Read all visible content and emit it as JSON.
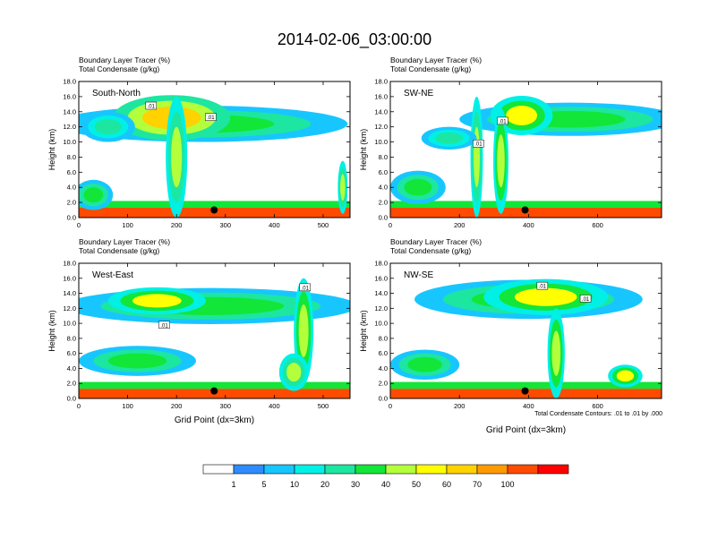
{
  "title": "2014-02-06_03:00:00",
  "chart_data": [
    {
      "type": "heatmap",
      "subtitle_lines": [
        "Boundary Layer Tracer   (%)",
        "Total Condensate   (g/kg)"
      ],
      "label": "South-North",
      "ylabel": "Height (km)",
      "xlabel": "",
      "xlim": [
        0,
        555
      ],
      "ylim": [
        0,
        18
      ],
      "xticks": [
        0,
        100,
        200,
        300,
        400,
        500
      ],
      "yticks": [
        "0.0",
        "2.0",
        "4.0",
        "6.0",
        "8.0",
        "10.0",
        "12.0",
        "14.0",
        "16.0",
        "18.0"
      ],
      "contour_labels": [
        {
          "x": 148,
          "y": 14.8,
          "text": ".01"
        },
        {
          "x": 270,
          "y": 13.3,
          "text": ".01"
        }
      ],
      "marker": {
        "x": 277,
        "y": 1.0
      },
      "features": [
        {
          "kind": "layer",
          "x0": 0,
          "x1": 555,
          "y0": 0,
          "y1": 1.3,
          "v": 75
        },
        {
          "kind": "layer",
          "x0": 0,
          "x1": 555,
          "y0": 1.3,
          "y1": 2.2,
          "v": 28
        },
        {
          "kind": "blob",
          "x": 250,
          "y": 12.4,
          "rx": 300,
          "ry": 2.4,
          "v": 20
        },
        {
          "kind": "blob",
          "x": 190,
          "y": 13.2,
          "rx": 120,
          "ry": 3.0,
          "v": 50
        },
        {
          "kind": "blob",
          "x": 200,
          "y": 8.0,
          "rx": 22,
          "ry": 8.0,
          "v": 30
        },
        {
          "kind": "blob",
          "x": 60,
          "y": 12.0,
          "rx": 55,
          "ry": 2.0,
          "v": 10
        },
        {
          "kind": "blob",
          "x": 540,
          "y": 4.0,
          "rx": 10,
          "ry": 3.5,
          "v": 30
        },
        {
          "kind": "blob",
          "x": 30,
          "y": 3.0,
          "rx": 40,
          "ry": 2.0,
          "v": 20
        }
      ]
    },
    {
      "type": "heatmap",
      "subtitle_lines": [
        "Boundary Layer Tracer   (%)",
        "Total Condensate   (g/kg)"
      ],
      "label": "SW-NE",
      "ylabel": "Height (km)",
      "xlabel": "",
      "xlim": [
        0,
        785
      ],
      "ylim": [
        0,
        18
      ],
      "xticks": [
        0,
        200,
        400,
        600
      ],
      "yticks": [
        "0.0",
        "2.0",
        "4.0",
        "6.0",
        "8.0",
        "10.0",
        "12.0",
        "14.0",
        "16.0",
        "18.0"
      ],
      "contour_labels": [
        {
          "x": 255,
          "y": 9.8,
          "text": ".01"
        },
        {
          "x": 325,
          "y": 12.8,
          "text": ".01"
        }
      ],
      "marker": {
        "x": 390,
        "y": 1.0
      },
      "features": [
        {
          "kind": "layer",
          "x0": 0,
          "x1": 785,
          "y0": 0,
          "y1": 1.3,
          "v": 75
        },
        {
          "kind": "layer",
          "x0": 0,
          "x1": 785,
          "y0": 1.3,
          "y1": 2.2,
          "v": 28
        },
        {
          "kind": "blob",
          "x": 520,
          "y": 13.0,
          "rx": 320,
          "ry": 2.2,
          "v": 20
        },
        {
          "kind": "blob",
          "x": 380,
          "y": 13.5,
          "rx": 90,
          "ry": 2.6,
          "v": 45
        },
        {
          "kind": "blob",
          "x": 250,
          "y": 8.0,
          "rx": 18,
          "ry": 8.0,
          "v": 30
        },
        {
          "kind": "blob",
          "x": 320,
          "y": 7.5,
          "rx": 22,
          "ry": 7.0,
          "v": 35
        },
        {
          "kind": "blob",
          "x": 80,
          "y": 4.0,
          "rx": 80,
          "ry": 2.2,
          "v": 20
        },
        {
          "kind": "blob",
          "x": 170,
          "y": 10.5,
          "rx": 80,
          "ry": 1.5,
          "v": 10
        }
      ]
    },
    {
      "type": "heatmap",
      "subtitle_lines": [
        "Boundary Layer Tracer   (%)",
        "Total Condensate   (g/kg)"
      ],
      "label": "West-East",
      "ylabel": "Height (km)",
      "xlabel": "Grid Point (dx=3km)",
      "xlim": [
        0,
        555
      ],
      "ylim": [
        0,
        18
      ],
      "xticks": [
        0,
        100,
        200,
        300,
        400,
        500
      ],
      "yticks": [
        "0.0",
        "2.0",
        "4.0",
        "6.0",
        "8.0",
        "10.0",
        "12.0",
        "14.0",
        "16.0",
        "18.0"
      ],
      "contour_labels": [
        {
          "x": 175,
          "y": 9.8,
          "text": ".01"
        },
        {
          "x": 463,
          "y": 14.8,
          "text": ".01"
        }
      ],
      "marker": {
        "x": 277,
        "y": 1.0
      },
      "features": [
        {
          "kind": "layer",
          "x0": 0,
          "x1": 555,
          "y0": 0,
          "y1": 1.3,
          "v": 75
        },
        {
          "kind": "layer",
          "x0": 0,
          "x1": 555,
          "y0": 1.3,
          "y1": 2.2,
          "v": 28
        },
        {
          "kind": "blob",
          "x": 270,
          "y": 12.3,
          "rx": 300,
          "ry": 2.4,
          "v": 22
        },
        {
          "kind": "blob",
          "x": 160,
          "y": 13.0,
          "rx": 100,
          "ry": 1.8,
          "v": 45
        },
        {
          "kind": "blob",
          "x": 460,
          "y": 9.0,
          "rx": 20,
          "ry": 7.0,
          "v": 35
        },
        {
          "kind": "blob",
          "x": 120,
          "y": 5.0,
          "rx": 120,
          "ry": 2.0,
          "v": 20
        },
        {
          "kind": "blob",
          "x": 440,
          "y": 3.5,
          "rx": 30,
          "ry": 2.5,
          "v": 30
        }
      ]
    },
    {
      "type": "heatmap",
      "subtitle_lines": [
        "Boundary Layer Tracer   (%)",
        "Total Condensate   (g/kg)"
      ],
      "label": "NW-SE",
      "ylabel": "Height (km)",
      "xlabel": "Grid Point (dx=3km)",
      "xlim": [
        0,
        785
      ],
      "ylim": [
        0,
        18
      ],
      "xticks": [
        0,
        200,
        400,
        600
      ],
      "yticks": [
        "0.0",
        "2.0",
        "4.0",
        "6.0",
        "8.0",
        "10.0",
        "12.0",
        "14.0",
        "16.0",
        "18.0"
      ],
      "contour_labels": [
        {
          "x": 440,
          "y": 15.0,
          "text": ".01"
        },
        {
          "x": 565,
          "y": 13.3,
          "text": ".01"
        }
      ],
      "marker": {
        "x": 390,
        "y": 1.0
      },
      "features": [
        {
          "kind": "layer",
          "x0": 0,
          "x1": 785,
          "y0": 0,
          "y1": 1.3,
          "v": 75
        },
        {
          "kind": "layer",
          "x0": 0,
          "x1": 785,
          "y0": 1.3,
          "y1": 2.2,
          "v": 28
        },
        {
          "kind": "blob",
          "x": 400,
          "y": 13.2,
          "rx": 330,
          "ry": 2.6,
          "v": 22
        },
        {
          "kind": "blob",
          "x": 450,
          "y": 13.5,
          "rx": 180,
          "ry": 2.4,
          "v": 45
        },
        {
          "kind": "blob",
          "x": 480,
          "y": 6.0,
          "rx": 25,
          "ry": 6.0,
          "v": 35
        },
        {
          "kind": "blob",
          "x": 100,
          "y": 4.5,
          "rx": 100,
          "ry": 2.0,
          "v": 20
        },
        {
          "kind": "blob",
          "x": 680,
          "y": 3.0,
          "rx": 50,
          "ry": 1.5,
          "v": 40
        }
      ]
    }
  ],
  "contour_note": "Total Condensate Contours: .01 to .01 by .000",
  "colorbar": {
    "labels": [
      "1",
      "5",
      "10",
      "20",
      "30",
      "40",
      "50",
      "60",
      "70",
      "100"
    ],
    "colors": [
      "#ffffff",
      "#2f8cff",
      "#18c6ff",
      "#00f0e6",
      "#1de6a0",
      "#12e639",
      "#b4ff3c",
      "#ffff00",
      "#ffd200",
      "#ff9a00",
      "#ff4b00",
      "#ff0000"
    ]
  }
}
